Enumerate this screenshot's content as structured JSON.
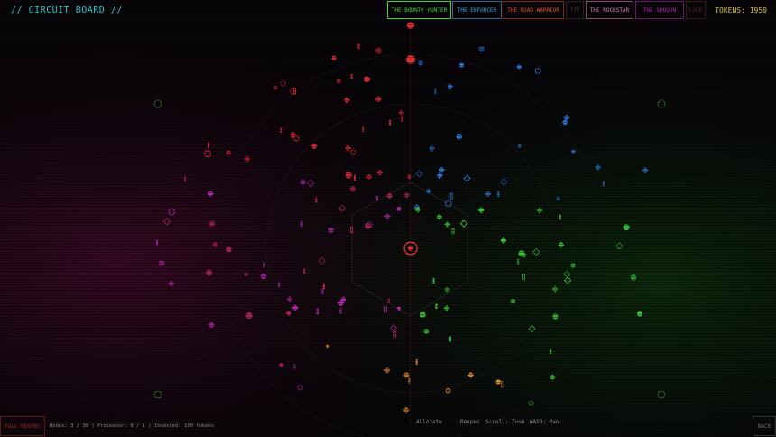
{
  "header": {
    "title": "// CIRCUIT BOARD //",
    "tabs": [
      "THE BOUNTY HUNTER",
      "THE ENFORCER",
      "THE ROAD WARRIOR",
      "???",
      "THE ROCKSTAR",
      "THE SHOGUN",
      "LOCK"
    ],
    "tokens": "TOKENS: 1950"
  },
  "footer": {
    "respec_button": "FULL RESPEC",
    "status": "Nodes: 3 / 30 | Processor: 0 / 1 | Invested: 100 tokens",
    "hints": [
      "Allocate",
      "Respec",
      "Scroll: Zoom",
      "WASD: Pan"
    ],
    "back_button": "BACK"
  }
}
